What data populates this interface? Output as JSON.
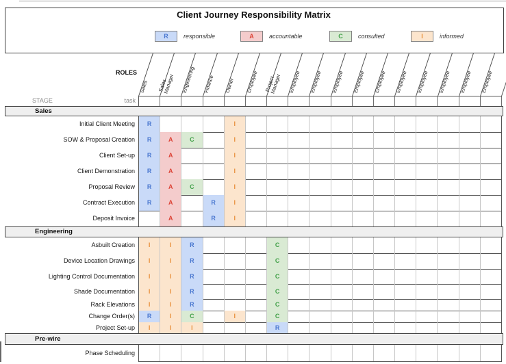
{
  "header": {
    "title": "Client Journey Responsibility Matrix"
  },
  "legend": [
    {
      "key": "R",
      "label": "responsible"
    },
    {
      "key": "A",
      "label": "accountable"
    },
    {
      "key": "C",
      "label": "consulted"
    },
    {
      "key": "I",
      "label": "informed"
    }
  ],
  "colors": {
    "R": {
      "bg": "#c9daf8",
      "fg": "#4a78d0"
    },
    "A": {
      "bg": "#f4cccc",
      "fg": "#dc4437"
    },
    "C": {
      "bg": "#d9ead3",
      "fg": "#42a049"
    },
    "I": {
      "bg": "#fce5cd",
      "fg": "#e8913c"
    }
  },
  "matrix": {
    "roles_label": "ROLES",
    "stage_label": "STAGE",
    "task_label": "task",
    "columns": [
      "Sales",
      "Sales Manager",
      "Engineering",
      "Finance",
      "Owner",
      "Employee",
      "Project Manager",
      "Employee",
      "Employee",
      "Employee",
      "Employee",
      "Employee",
      "Employee",
      "Employee",
      "Employee",
      "Employee",
      "Employee"
    ],
    "sections": [
      {
        "name": "Sales",
        "tasks": [
          {
            "name": "Initial Client Meeting",
            "cells": {
              "0": "R",
              "4": "I"
            }
          },
          {
            "name": "SOW & Proposal Creation",
            "cells": {
              "0": "R",
              "1": "A",
              "2": "C",
              "4": "I"
            }
          },
          {
            "name": "Client Set-up",
            "cells": {
              "0": "R",
              "1": "A",
              "4": "I"
            }
          },
          {
            "name": "Client Demonstration",
            "cells": {
              "0": "R",
              "1": "A",
              "4": "I"
            }
          },
          {
            "name": "Proposal Review",
            "cells": {
              "0": "R",
              "1": "A",
              "2": "C",
              "4": "I"
            }
          },
          {
            "name": "Contract Execution",
            "cells": {
              "0": "R",
              "1": "A",
              "3": "R",
              "4": "I"
            }
          },
          {
            "name": "Deposit Invoice",
            "cells": {
              "1": "A",
              "3": "R",
              "4": "I"
            }
          }
        ]
      },
      {
        "name": "Engineering",
        "tasks": [
          {
            "name": "Asbuilt Creation",
            "cells": {
              "0": "I",
              "1": "I",
              "2": "R",
              "6": "C"
            }
          },
          {
            "name": "Device Location Drawings",
            "cells": {
              "0": "I",
              "1": "I",
              "2": "R",
              "6": "C"
            }
          },
          {
            "name": "Lighting Control Documentation",
            "cells": {
              "0": "I",
              "1": "I",
              "2": "R",
              "6": "C"
            }
          },
          {
            "name": "Shade Documentation",
            "cells": {
              "0": "I",
              "1": "I",
              "2": "R",
              "6": "C"
            }
          },
          {
            "name": "Rack Elevations",
            "cells": {
              "0": "I",
              "1": "I",
              "2": "R",
              "6": "C"
            }
          },
          {
            "name": "Change Order(s)",
            "cells": {
              "0": "R",
              "1": "I",
              "2": "C",
              "4": "I",
              "6": "C"
            }
          },
          {
            "name": "Project Set-up",
            "cells": {
              "0": "I",
              "1": "I",
              "2": "I",
              "6": "R"
            }
          }
        ]
      },
      {
        "name": "Pre-wire",
        "tasks": [
          {
            "name": "Phase Scheduling",
            "cells": {}
          }
        ]
      }
    ]
  }
}
